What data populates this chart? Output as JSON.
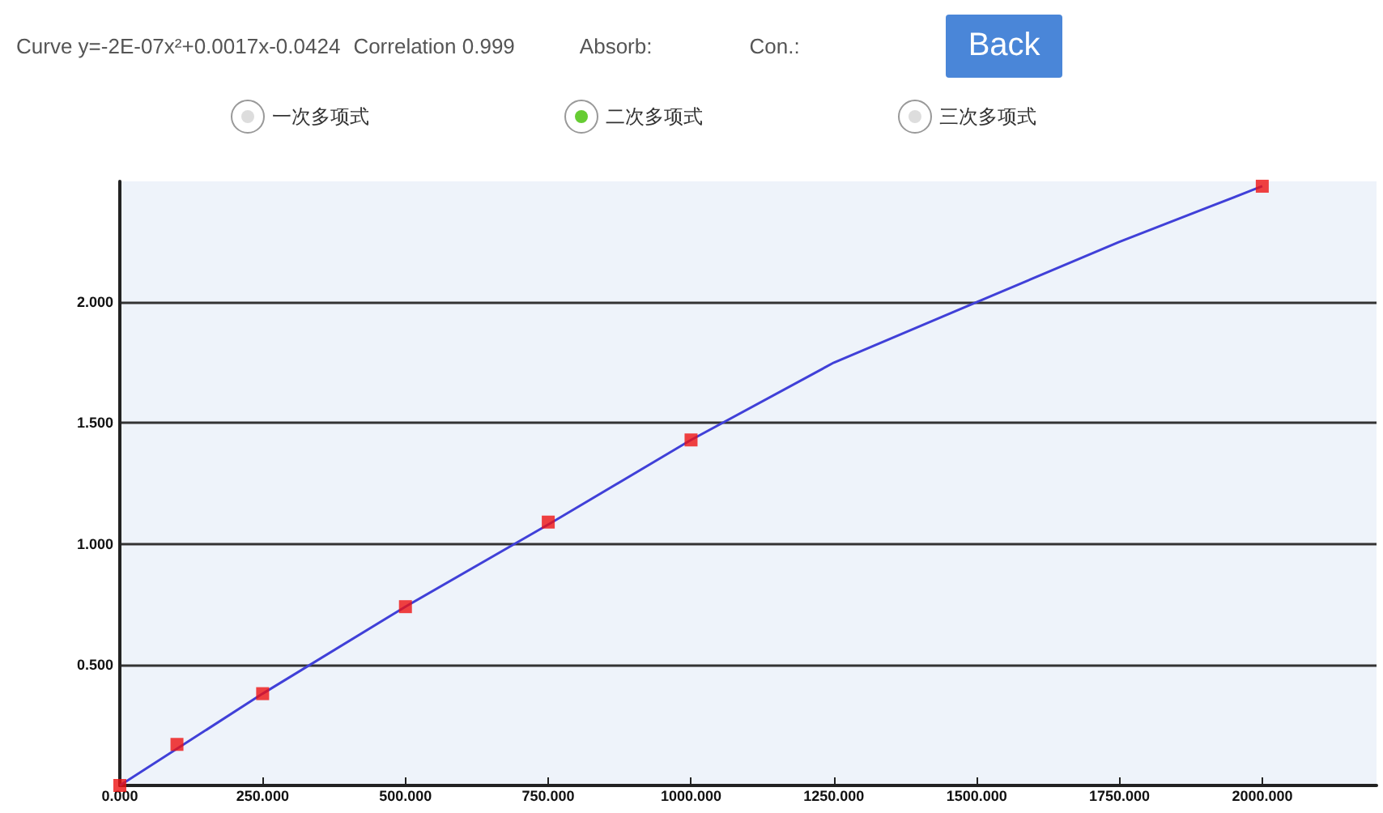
{
  "chart_data": {
    "type": "scatter",
    "title": "Curve y=-2E-07x²+0.0017x-0.0424",
    "annotations": [
      "Correlation 0.999",
      "Absorb:",
      "Con.:",
      "Back",
      "一次多项式",
      "二次多项式",
      "三次多项式"
    ],
    "xlim": [
      0,
      2200
    ],
    "ylim": [
      0,
      2.5
    ],
    "xticks": [
      {
        "value": 0,
        "label": "0.000"
      },
      {
        "value": 250,
        "label": "250.000"
      },
      {
        "value": 500,
        "label": "500.000"
      },
      {
        "value": 750,
        "label": "750.000"
      },
      {
        "value": 1000,
        "label": "1000.000"
      },
      {
        "value": 1250,
        "label": "1250.000"
      },
      {
        "value": 1500,
        "label": "1500.000"
      },
      {
        "value": 1750,
        "label": "1750.000"
      },
      {
        "value": 2000,
        "label": "2000.000"
      }
    ],
    "yticks": [
      {
        "value": 0.5,
        "label": "0.500"
      },
      {
        "value": 1,
        "label": "1.000"
      },
      {
        "value": 1.5,
        "label": "1.500"
      },
      {
        "value": 2,
        "label": "2.000"
      }
    ],
    "grid": "y",
    "series": [
      {
        "type": "line",
        "color": "#4040d8",
        "marker": "none",
        "x": [
          0,
          250,
          500,
          750,
          1000,
          1250,
          1500,
          1750,
          2000
        ],
        "values": [
          0,
          0.38,
          0.74,
          1.08,
          1.43,
          1.75,
          2.0,
          2.25,
          2.48
        ]
      },
      {
        "color": "#ee1111",
        "marker": "square",
        "x": [
          0,
          100,
          250,
          500,
          750,
          1000,
          2000
        ],
        "values": [
          0,
          0.17,
          0.38,
          0.74,
          1.09,
          1.43,
          2.48
        ]
      }
    ]
  }
}
